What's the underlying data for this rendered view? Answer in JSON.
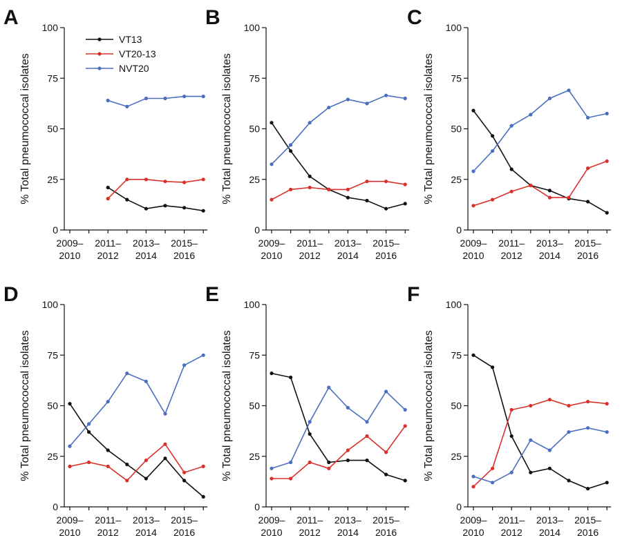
{
  "figure": {
    "ylabel": "% Total pneumococcal isolates",
    "yticks": [
      "0",
      "25",
      "50",
      "75",
      "100"
    ],
    "xticks": [
      {
        "top": "2009–",
        "bottom": "2010"
      },
      {
        "top": "2011–",
        "bottom": "2012"
      },
      {
        "top": "2013–",
        "bottom": "2014"
      },
      {
        "top": "2015–",
        "bottom": "2016"
      }
    ],
    "legend": [
      "VT13",
      "VT20-13",
      "NVT20"
    ],
    "colors": {
      "VT13": "#111111",
      "VT20-13": "#d9302a",
      "NVT20": "#4a6fc0"
    }
  },
  "chart_data": [
    {
      "type": "line",
      "panel": "A",
      "ylim": [
        0,
        100
      ],
      "x": [
        "2009–2010",
        "2010–2011",
        "2011–2012",
        "2012–2013",
        "2013–2014",
        "2014–2015",
        "2015–2016",
        "2016–2017"
      ],
      "series": [
        {
          "name": "VT13",
          "values": [
            null,
            null,
            21,
            15,
            10.5,
            12,
            11,
            9.5
          ]
        },
        {
          "name": "VT20-13",
          "values": [
            null,
            null,
            15.5,
            25,
            25,
            24,
            23.5,
            25
          ]
        },
        {
          "name": "NVT20",
          "values": [
            null,
            null,
            64,
            61,
            65,
            65,
            66,
            66
          ]
        }
      ]
    },
    {
      "type": "line",
      "panel": "B",
      "ylim": [
        0,
        100
      ],
      "x": [
        "2009–2010",
        "2010–2011",
        "2011–2012",
        "2012–2013",
        "2013–2014",
        "2014–2015",
        "2015–2016",
        "2016–2017"
      ],
      "series": [
        {
          "name": "VT13",
          "values": [
            53,
            39,
            26.5,
            20,
            16,
            14.5,
            10.5,
            13
          ]
        },
        {
          "name": "VT20-13",
          "values": [
            15,
            20,
            21,
            20,
            20,
            24,
            24,
            22.5
          ]
        },
        {
          "name": "NVT20",
          "values": [
            32.5,
            42,
            53,
            60.5,
            64.5,
            62.5,
            66.5,
            65
          ]
        }
      ]
    },
    {
      "type": "line",
      "panel": "C",
      "ylim": [
        0,
        100
      ],
      "x": [
        "2009–2010",
        "2010–2011",
        "2011–2012",
        "2012–2013",
        "2013–2014",
        "2014–2015",
        "2015–2016",
        "2016–2017"
      ],
      "series": [
        {
          "name": "VT13",
          "values": [
            59,
            46.5,
            30,
            22,
            19.5,
            15.5,
            14,
            8.5
          ]
        },
        {
          "name": "VT20-13",
          "values": [
            12,
            15,
            19,
            22,
            16,
            16,
            30.5,
            34
          ]
        },
        {
          "name": "NVT20",
          "values": [
            29,
            39,
            51.5,
            57,
            65,
            69,
            55.5,
            57.5
          ]
        }
      ]
    },
    {
      "type": "line",
      "panel": "D",
      "ylim": [
        0,
        100
      ],
      "x": [
        "2009–2010",
        "2010–2011",
        "2011–2012",
        "2012–2013",
        "2013–2014",
        "2014–2015",
        "2015–2016",
        "2016–2017"
      ],
      "series": [
        {
          "name": "VT13",
          "values": [
            51,
            37,
            28,
            21,
            14,
            24,
            13,
            5
          ]
        },
        {
          "name": "VT20-13",
          "values": [
            20,
            22,
            20,
            13,
            23,
            31,
            17,
            20
          ]
        },
        {
          "name": "NVT20",
          "values": [
            30,
            41,
            52,
            66,
            62,
            46,
            70,
            75
          ]
        }
      ]
    },
    {
      "type": "line",
      "panel": "E",
      "ylim": [
        0,
        100
      ],
      "x": [
        "2009–2010",
        "2010–2011",
        "2011–2012",
        "2012–2013",
        "2013–2014",
        "2014–2015",
        "2015–2016",
        "2016–2017"
      ],
      "series": [
        {
          "name": "VT13",
          "values": [
            66,
            64,
            36,
            22,
            23,
            23,
            16,
            13
          ]
        },
        {
          "name": "VT20-13",
          "values": [
            14,
            14,
            22,
            19,
            28,
            35,
            27,
            40
          ]
        },
        {
          "name": "NVT20",
          "values": [
            19,
            22,
            42,
            59,
            49,
            42,
            57,
            48
          ]
        }
      ]
    },
    {
      "type": "line",
      "panel": "F",
      "ylim": [
        0,
        100
      ],
      "x": [
        "2009–2010",
        "2010–2011",
        "2011–2012",
        "2012–2013",
        "2013–2014",
        "2014–2015",
        "2015–2016",
        "2016–2017"
      ],
      "series": [
        {
          "name": "VT13",
          "values": [
            75,
            69,
            35,
            17,
            19,
            13,
            9,
            12
          ]
        },
        {
          "name": "VT20-13",
          "values": [
            10,
            19,
            48,
            50,
            53,
            50,
            52,
            51
          ]
        },
        {
          "name": "NVT20",
          "values": [
            15,
            12,
            17,
            33,
            28,
            37,
            39,
            37
          ]
        }
      ]
    }
  ]
}
